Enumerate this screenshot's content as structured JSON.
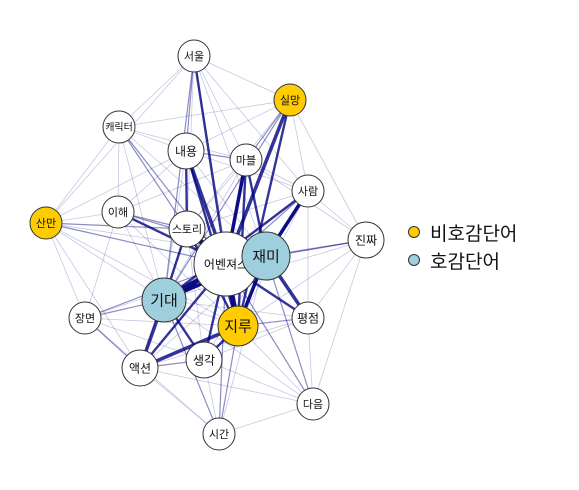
{
  "colors": {
    "negative": "#FFCC00",
    "positive": "#9FCFDD",
    "neutral": "#FFFFFF",
    "edge": "#00007F"
  },
  "legend": {
    "items": [
      {
        "label": "비호감단어",
        "color": "#FFCC00"
      },
      {
        "label": "호감단어",
        "color": "#9FCFDD"
      }
    ]
  },
  "nodes": [
    {
      "id": "seoul",
      "label": "서울",
      "category": "neutral"
    },
    {
      "id": "silmang",
      "label": "실망",
      "category": "negative"
    },
    {
      "id": "character",
      "label": "캐릭터",
      "category": "neutral"
    },
    {
      "id": "naeyong",
      "label": "내용",
      "category": "neutral"
    },
    {
      "id": "marvel",
      "label": "마블",
      "category": "neutral"
    },
    {
      "id": "saram",
      "label": "사람",
      "category": "neutral"
    },
    {
      "id": "sanman",
      "label": "산만",
      "category": "negative"
    },
    {
      "id": "ihae",
      "label": "이해",
      "category": "neutral"
    },
    {
      "id": "story",
      "label": "스토리",
      "category": "neutral"
    },
    {
      "id": "avengers",
      "label": "어벤져스",
      "category": "neutral"
    },
    {
      "id": "jaemi",
      "label": "재미",
      "category": "positive"
    },
    {
      "id": "jinjja",
      "label": "진짜",
      "category": "neutral"
    },
    {
      "id": "gidae",
      "label": "기대",
      "category": "positive"
    },
    {
      "id": "jangmyeon",
      "label": "장면",
      "category": "neutral"
    },
    {
      "id": "jiru",
      "label": "지루",
      "category": "negative"
    },
    {
      "id": "pyeongjeom",
      "label": "평점",
      "category": "neutral"
    },
    {
      "id": "action",
      "label": "액션",
      "category": "neutral"
    },
    {
      "id": "saenggak",
      "label": "생각",
      "category": "neutral"
    },
    {
      "id": "daeum",
      "label": "다음",
      "category": "neutral"
    },
    {
      "id": "sigan",
      "label": "시간",
      "category": "neutral"
    }
  ]
}
